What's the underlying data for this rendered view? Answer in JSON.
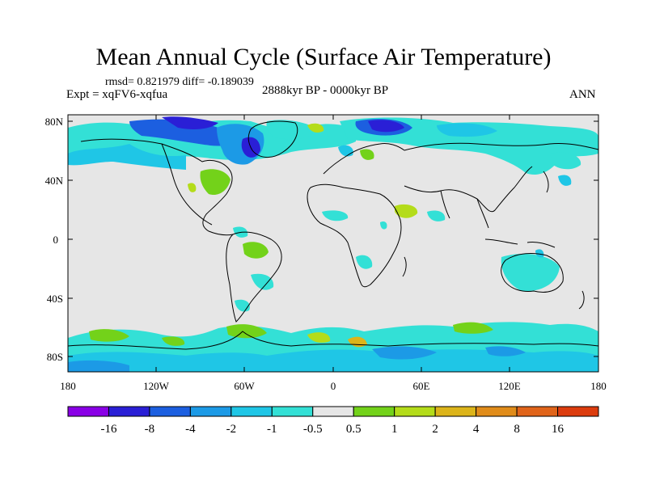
{
  "header": {
    "title": "Mean Annual Cycle (Surface Air Temperature)",
    "stats": "rmsd= 0.821979 diff= -0.189039",
    "experiment": "Expt = xqFV6-xqfua",
    "period": "2888kyr BP - 0000kyr BP",
    "season": "ANN"
  },
  "axes": {
    "lat_ticks": [
      "80N",
      "40N",
      "0",
      "40S",
      "80S"
    ],
    "lon_ticks": [
      "180",
      "120W",
      "60W",
      "0",
      "60E",
      "120E",
      "180"
    ]
  },
  "colorbar": {
    "labels": [
      "-16",
      "-8",
      "-4",
      "-2",
      "-1",
      "-0.5",
      "0.5",
      "1",
      "2",
      "4",
      "8",
      "16"
    ],
    "colors": [
      "#8a00e6",
      "#2a1fd6",
      "#1c5fe0",
      "#1c9ae6",
      "#1fc6e6",
      "#33e0d6",
      "#e6e6e6",
      "#73d21a",
      "#b4dc1a",
      "#dcb41a",
      "#e08c1a",
      "#e0641a",
      "#dc3c0e"
    ]
  },
  "colors": {
    "land_bg": "#e6e6e6",
    "coast": "#000000"
  }
}
